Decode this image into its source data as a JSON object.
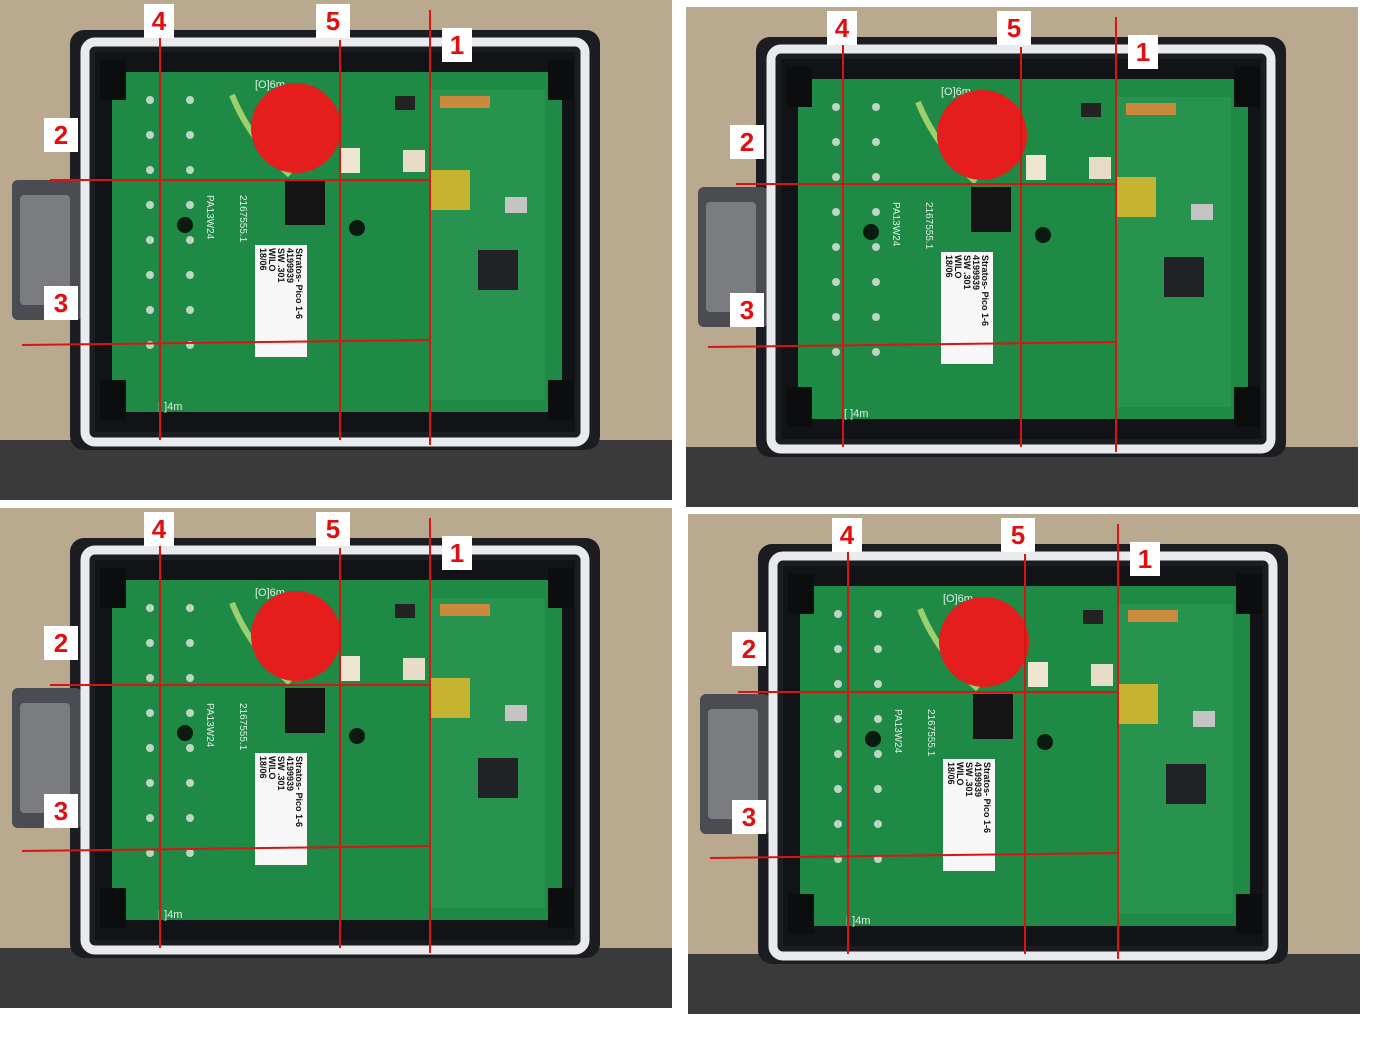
{
  "panels": [
    {
      "name": "top-left",
      "label_1": "1",
      "label_2": "2",
      "label_3": "3",
      "label_4": "4",
      "label_5": "5",
      "sticker": [
        "Stratos- Pico 1-6",
        "4199939",
        "SW .301",
        "WILO",
        "18/06"
      ],
      "pcb_marks": {
        "top": "[O]6m",
        "bottom": "[ ]4m",
        "side_a": "2167555.1",
        "side_b": "PA13W24"
      }
    },
    {
      "name": "top-right",
      "label_1": "1",
      "label_2": "2",
      "label_3": "3",
      "label_4": "4",
      "label_5": "5",
      "sticker": [
        "Stratos- Pico 1-6",
        "4199939",
        "SW .301",
        "WILO",
        "18/06"
      ],
      "pcb_marks": {
        "top": "[O]6m",
        "bottom": "[ ]4m",
        "side_a": "2167555.1",
        "side_b": "PA13W24"
      }
    },
    {
      "name": "bottom-left",
      "label_1": "1",
      "label_2": "2",
      "label_3": "3",
      "label_4": "4",
      "label_5": "5",
      "sticker": [
        "Stratos- Pico 1-6",
        "4199939",
        "SW .301",
        "WILO",
        "18/06"
      ],
      "pcb_marks": {
        "top": "[O]6m",
        "bottom": "[ ]4m",
        "side_a": "2167555.1",
        "side_b": "PA13W24"
      }
    },
    {
      "name": "bottom-right",
      "label_1": "1",
      "label_2": "2",
      "label_3": "3",
      "label_4": "4",
      "label_5": "5",
      "sticker": [
        "Stratos- Pico 1-6",
        "4199939",
        "SW .301",
        "WILO",
        "18/06"
      ],
      "pcb_marks": {
        "top": "[O]6m",
        "bottom": "[ ]4m",
        "side_a": "2167555.1",
        "side_b": "PA13W24"
      }
    }
  ],
  "colors": {
    "pcb_green": "#1f8a45",
    "marker_red": "#e51d1d",
    "line_red": "#d81414",
    "housing_black": "#1b1d22",
    "frame_white": "#e8eaec",
    "background_wood": "#b9a98f"
  }
}
